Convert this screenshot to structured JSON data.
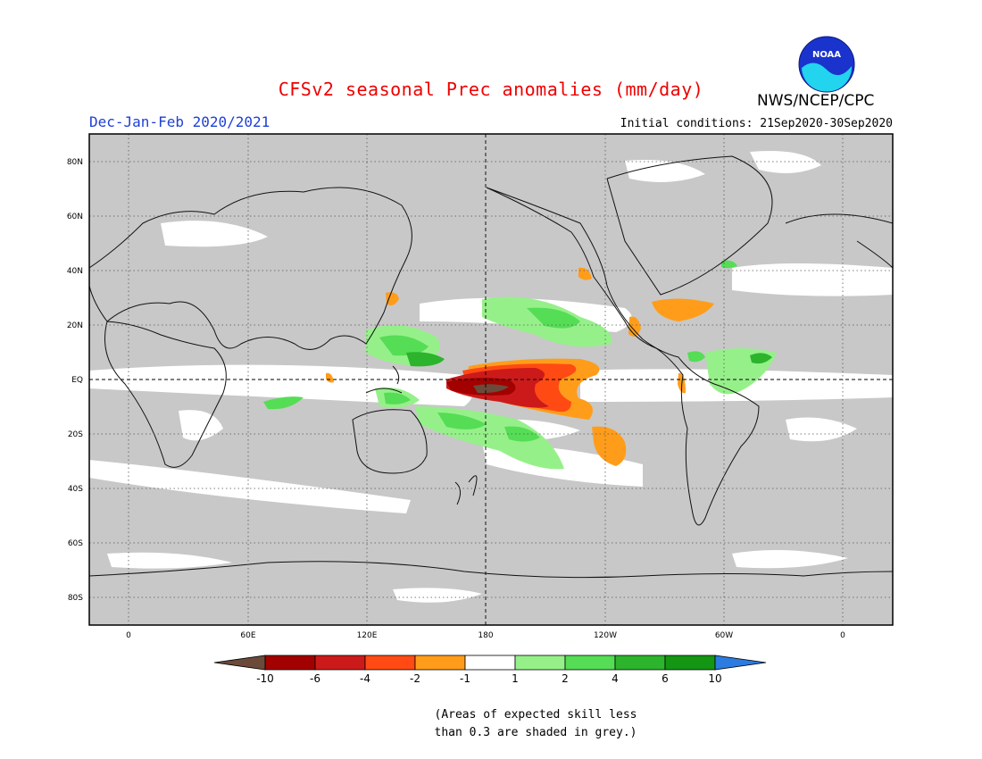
{
  "header": {
    "title": "CFSv2 seasonal Prec anomalies (mm/day)",
    "period": "Dec-Jan-Feb 2020/2021",
    "initial_conditions": "Initial conditions: 21Sep2020-30Sep2020",
    "agency": "NWS/NCEP/CPC",
    "logo_text": "NOAA"
  },
  "map": {
    "lat_labels": [
      "80N",
      "60N",
      "40N",
      "20N",
      "EQ",
      "20S",
      "40S",
      "60S",
      "80S"
    ],
    "lon_labels": [
      "0",
      "60E",
      "120E",
      "180",
      "120W",
      "60W",
      "0"
    ],
    "colors": {
      "grey": "#c8c8c8",
      "white": "#ffffff",
      "dry_10": "#6b4a3a",
      "dry_6": "#a30000",
      "dry_4": "#cc1a1a",
      "dry_2": "#ff4a14",
      "dry_1": "#ff9d1a",
      "wet_1": "#96f08a",
      "wet_2": "#55dd55",
      "wet_4": "#2cb42c",
      "wet_6": "#149614",
      "wet_10": "#2b7be0"
    }
  },
  "colorbar": {
    "ticks": [
      "-10",
      "-6",
      "-4",
      "-2",
      "-1",
      "1",
      "2",
      "4",
      "6",
      "10"
    ],
    "colors": [
      "#6b4a3a",
      "#a30000",
      "#cc1a1a",
      "#ff4a14",
      "#ff9d1a",
      "#ffffff",
      "#96f08a",
      "#55dd55",
      "#2cb42c",
      "#149614",
      "#2b7be0"
    ]
  },
  "note": {
    "line1": "(Areas of expected skill less",
    "line2": "than 0.3 are shaded in grey.)"
  }
}
